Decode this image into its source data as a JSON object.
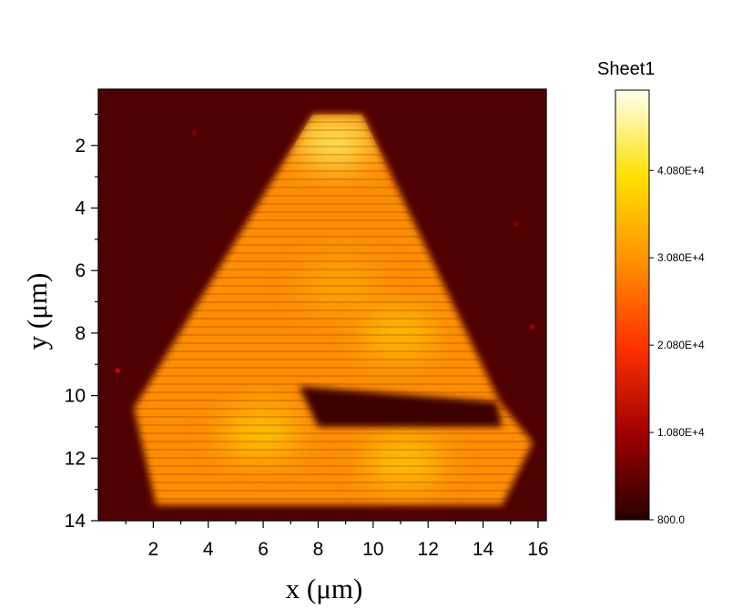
{
  "chart_data": {
    "type": "heatmap",
    "title": "",
    "xlabel": "x (μm)",
    "ylabel": "y (μm)",
    "xlim": [
      0,
      16.3
    ],
    "ylim": [
      14,
      0.2
    ],
    "x_ticks": [
      "2",
      "4",
      "6",
      "8",
      "10",
      "12",
      "14",
      "16"
    ],
    "y_ticks": [
      "2",
      "4",
      "6",
      "8",
      "10",
      "12",
      "14"
    ],
    "colorbar": {
      "title": "Sheet1",
      "min": 800.0,
      "max": 50000,
      "tick_labels": [
        "800.0",
        "1.080E+4",
        "2.080E+4",
        "3.080E+4",
        "4.080E+4"
      ],
      "tick_values": [
        800,
        10800,
        20800,
        30800,
        40800
      ],
      "colors": [
        "#280000",
        "#a00000",
        "#ff3000",
        "#ff9000",
        "#ffe000",
        "#fffff0"
      ]
    },
    "background_intensity": 4000,
    "flake": {
      "outline": [
        [
          7.8,
          1.0
        ],
        [
          9.6,
          1.0
        ],
        [
          14.6,
          10.2
        ],
        [
          15.8,
          11.5
        ],
        [
          14.7,
          13.5
        ],
        [
          2.1,
          13.5
        ],
        [
          1.3,
          10.4
        ]
      ],
      "notch": [
        [
          7.3,
          9.7
        ],
        [
          14.5,
          10.2
        ],
        [
          14.7,
          11.0
        ],
        [
          8.0,
          11.0
        ]
      ],
      "body_intensity": 30000,
      "hotspots": [
        {
          "x": 8.6,
          "y": 1.9,
          "value": 44000
        },
        {
          "x": 10.9,
          "y": 8.0,
          "value": 36000
        },
        {
          "x": 5.9,
          "y": 11.2,
          "value": 37000
        },
        {
          "x": 11.1,
          "y": 12.1,
          "value": 37000
        },
        {
          "x": 8.8,
          "y": 6.5,
          "value": 33000
        }
      ]
    },
    "specks": [
      {
        "x": 3.5,
        "y": 1.6,
        "value": 9000
      },
      {
        "x": 0.7,
        "y": 9.2,
        "value": 14000
      },
      {
        "x": 15.2,
        "y": 4.5,
        "value": 9000
      },
      {
        "x": 15.8,
        "y": 7.8,
        "value": 11000
      }
    ]
  }
}
